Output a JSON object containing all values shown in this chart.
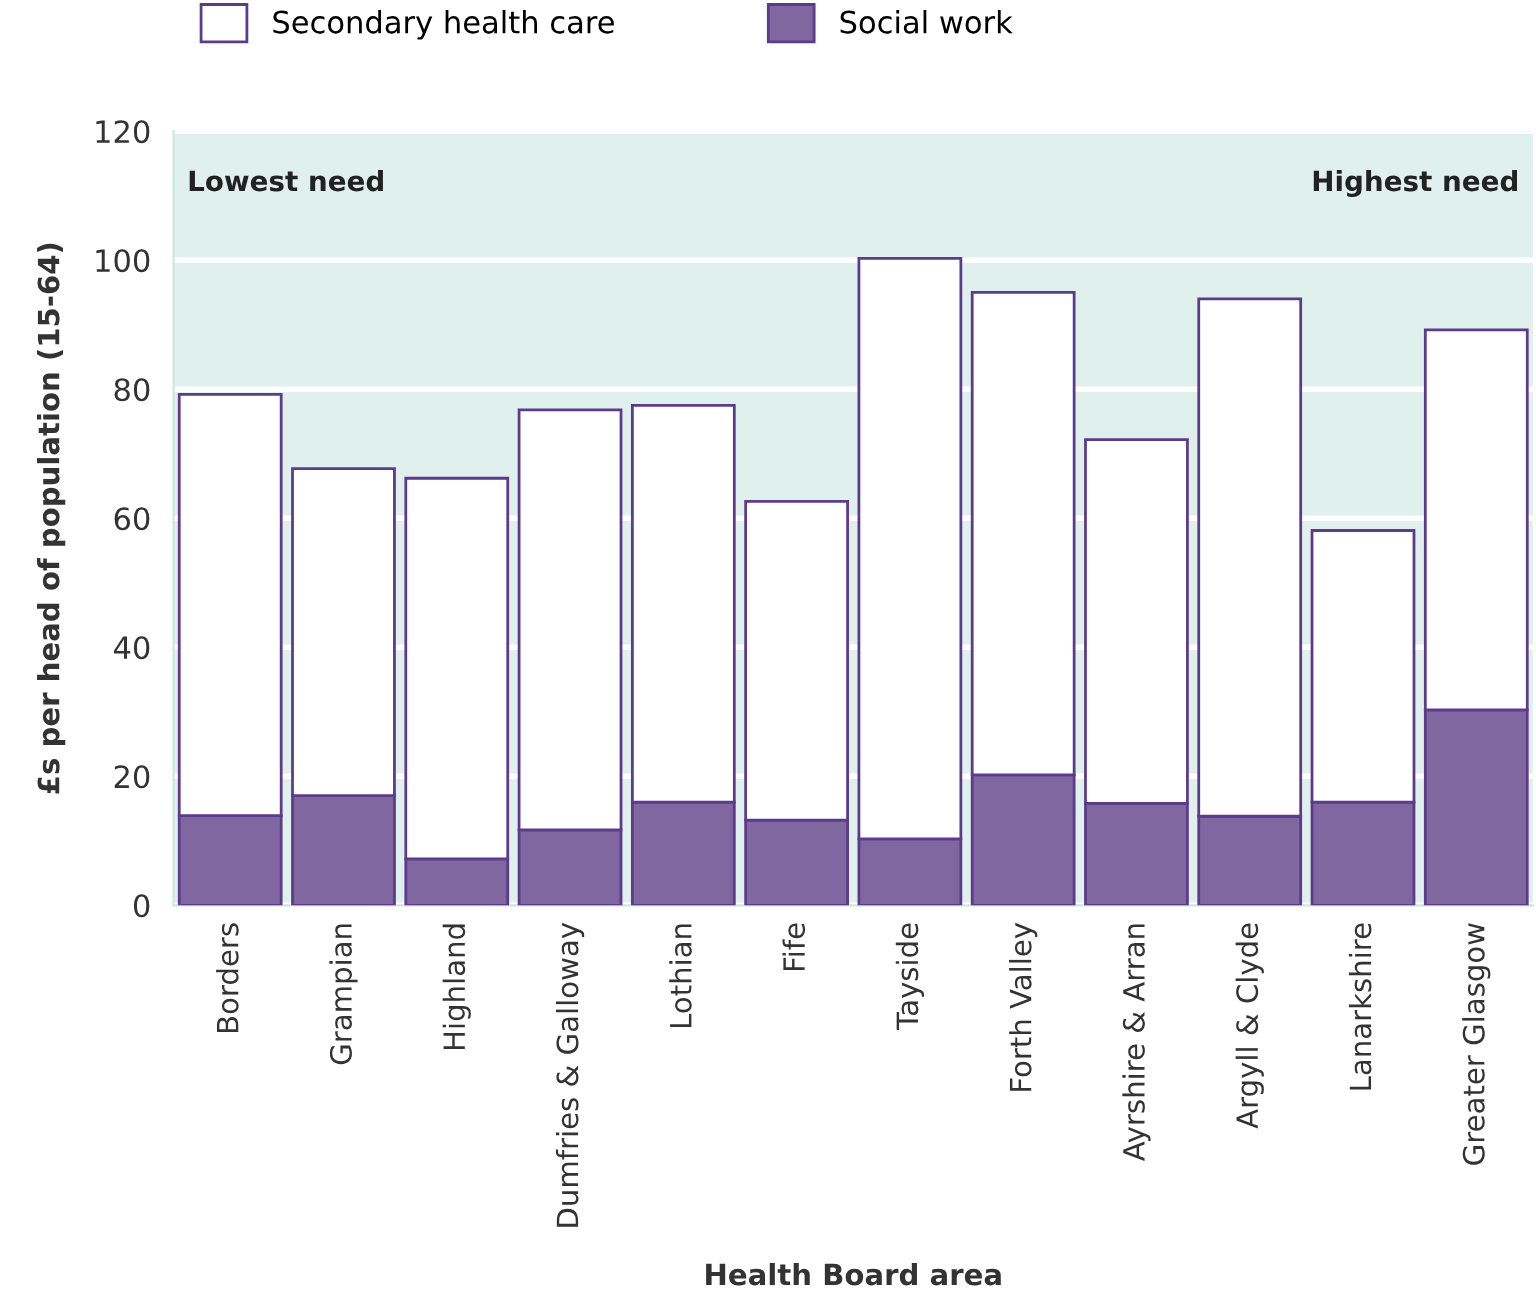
{
  "chart_data": {
    "type": "bar",
    "stacked": true,
    "xlabel": "Health Board area",
    "ylabel": "£s per head of population (15-64)",
    "categories": [
      "Borders",
      "Grampian",
      "Highland",
      "Dumfries & Galloway",
      "Lothian",
      "Fife",
      "Tayside",
      "Forth Valley",
      "Ayrshire & Arran",
      "Argyll & Clyde",
      "Lanarkshire",
      "Greater Glasgow"
    ],
    "series": [
      {
        "name": "Social work",
        "color": "#8067a0",
        "values": [
          13.9,
          17.0,
          7.2,
          11.7,
          16.0,
          13.2,
          10.3,
          20.2,
          15.8,
          13.8,
          16.0,
          30.3
        ]
      },
      {
        "name": "Secondary health care",
        "color": "#ffffff",
        "values": [
          65.3,
          50.7,
          59.0,
          65.1,
          61.5,
          49.4,
          90.0,
          74.8,
          56.4,
          80.2,
          42.1,
          58.9
        ]
      }
    ],
    "annotations": [
      "Lowest need",
      "Highest need"
    ],
    "ylim": [
      0,
      120
    ],
    "yticks": [
      0,
      20,
      40,
      60,
      80,
      100,
      120
    ],
    "grid": "y",
    "legend": "top"
  }
}
